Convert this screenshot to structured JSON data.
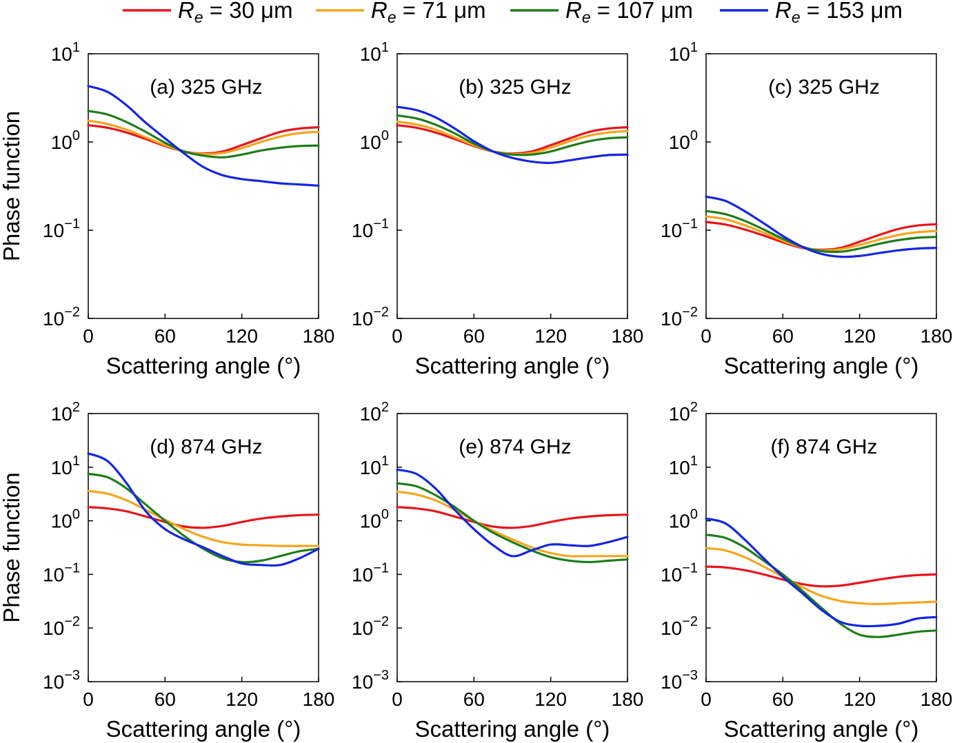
{
  "legend": {
    "entries": [
      {
        "label_var": "R",
        "label_sub": "e",
        "label_rest": " = 30 μm",
        "color": "#e8141c"
      },
      {
        "label_var": "R",
        "label_sub": "e",
        "label_rest": " = 71 μm",
        "color": "#f5a51d"
      },
      {
        "label_var": "R",
        "label_sub": "e",
        "label_rest": " = 107 μm",
        "color": "#1e7d1a"
      },
      {
        "label_var": "R",
        "label_sub": "e",
        "label_rest": " = 153 μm",
        "color": "#1426e0"
      }
    ]
  },
  "chart_data": [
    {
      "type": "line",
      "title": "(a) 325 GHz",
      "xlabel": "Scattering angle (°)",
      "ylabel": "Phase function",
      "xlim": [
        0,
        180
      ],
      "ylim": [
        0.01,
        10
      ],
      "yscale": "log",
      "xticks": [
        0,
        60,
        120,
        180
      ],
      "yticks_exp": [
        1,
        0,
        -1,
        -2
      ],
      "x": [
        0,
        15,
        30,
        45,
        60,
        75,
        90,
        105,
        120,
        135,
        150,
        165,
        180
      ],
      "series": [
        {
          "name": "Re = 30 μm",
          "values": [
            1.55,
            1.45,
            1.28,
            1.08,
            0.9,
            0.78,
            0.74,
            0.78,
            0.92,
            1.1,
            1.3,
            1.42,
            1.47
          ]
        },
        {
          "name": "Re = 71 μm",
          "values": [
            1.75,
            1.6,
            1.38,
            1.13,
            0.92,
            0.78,
            0.73,
            0.75,
            0.85,
            1.0,
            1.15,
            1.26,
            1.3
          ]
        },
        {
          "name": "Re = 107 μm",
          "values": [
            2.25,
            2.05,
            1.68,
            1.3,
            0.98,
            0.78,
            0.7,
            0.67,
            0.72,
            0.8,
            0.86,
            0.9,
            0.91
          ]
        },
        {
          "name": "Re = 153 μm",
          "values": [
            4.3,
            3.7,
            2.6,
            1.65,
            1.1,
            0.74,
            0.52,
            0.42,
            0.38,
            0.36,
            0.34,
            0.33,
            0.32
          ]
        }
      ]
    },
    {
      "type": "line",
      "title": "(b) 325 GHz",
      "xlabel": "Scattering angle (°)",
      "ylabel": "",
      "xlim": [
        0,
        180
      ],
      "ylim": [
        0.01,
        10
      ],
      "yscale": "log",
      "xticks": [
        0,
        60,
        120,
        180
      ],
      "yticks_exp": [
        1,
        0,
        -1,
        -2
      ],
      "x": [
        0,
        15,
        30,
        45,
        60,
        75,
        90,
        105,
        120,
        135,
        150,
        165,
        180
      ],
      "series": [
        {
          "name": "Re = 30 μm",
          "values": [
            1.55,
            1.45,
            1.28,
            1.08,
            0.9,
            0.78,
            0.74,
            0.78,
            0.92,
            1.1,
            1.3,
            1.42,
            1.47
          ]
        },
        {
          "name": "Re = 71 μm",
          "values": [
            1.7,
            1.58,
            1.38,
            1.13,
            0.92,
            0.78,
            0.73,
            0.75,
            0.86,
            1.02,
            1.18,
            1.28,
            1.33
          ]
        },
        {
          "name": "Re = 107 μm",
          "values": [
            2.0,
            1.85,
            1.57,
            1.25,
            0.96,
            0.78,
            0.72,
            0.72,
            0.78,
            0.9,
            1.02,
            1.1,
            1.13
          ]
        },
        {
          "name": "Re = 153 μm",
          "values": [
            2.5,
            2.3,
            1.9,
            1.42,
            1.02,
            0.78,
            0.66,
            0.6,
            0.58,
            0.62,
            0.67,
            0.71,
            0.72
          ]
        }
      ]
    },
    {
      "type": "line",
      "title": "(c) 325 GHz",
      "xlabel": "Scattering angle (°)",
      "ylabel": "",
      "xlim": [
        0,
        180
      ],
      "ylim": [
        0.01,
        10
      ],
      "yscale": "log",
      "xticks": [
        0,
        60,
        120,
        180
      ],
      "yticks_exp": [
        1,
        0,
        -1,
        -2
      ],
      "x": [
        0,
        15,
        30,
        45,
        60,
        75,
        90,
        105,
        120,
        135,
        150,
        165,
        180
      ],
      "series": [
        {
          "name": "Re = 30 μm",
          "values": [
            0.124,
            0.116,
            0.102,
            0.087,
            0.073,
            0.063,
            0.06,
            0.063,
            0.074,
            0.088,
            0.103,
            0.113,
            0.117
          ]
        },
        {
          "name": "Re = 71 μm",
          "values": [
            0.143,
            0.133,
            0.114,
            0.094,
            0.076,
            0.064,
            0.059,
            0.061,
            0.068,
            0.078,
            0.088,
            0.095,
            0.098
          ]
        },
        {
          "name": "Re = 107 μm",
          "values": [
            0.165,
            0.152,
            0.128,
            0.102,
            0.08,
            0.065,
            0.058,
            0.057,
            0.062,
            0.07,
            0.077,
            0.082,
            0.084
          ]
        },
        {
          "name": "Re = 153 μm",
          "values": [
            0.24,
            0.215,
            0.165,
            0.12,
            0.086,
            0.065,
            0.054,
            0.05,
            0.051,
            0.055,
            0.059,
            0.062,
            0.063
          ]
        }
      ]
    },
    {
      "type": "line",
      "title": "(d) 874 GHz",
      "xlabel": "Scattering angle (°)",
      "ylabel": "Phase function",
      "xlim": [
        0,
        180
      ],
      "ylim": [
        0.001,
        100
      ],
      "yscale": "log",
      "xticks": [
        0,
        60,
        120,
        180
      ],
      "yticks_exp": [
        2,
        1,
        0,
        -1,
        -2,
        -3
      ],
      "x": [
        0,
        15,
        30,
        45,
        60,
        75,
        90,
        105,
        120,
        135,
        150,
        165,
        180
      ],
      "series": [
        {
          "name": "Re = 30 μm",
          "values": [
            1.8,
            1.7,
            1.5,
            1.2,
            0.95,
            0.78,
            0.74,
            0.8,
            0.95,
            1.1,
            1.2,
            1.27,
            1.3
          ]
        },
        {
          "name": "Re = 71 μm",
          "values": [
            3.6,
            3.2,
            2.4,
            1.6,
            1.05,
            0.7,
            0.5,
            0.4,
            0.36,
            0.35,
            0.34,
            0.34,
            0.34
          ]
        },
        {
          "name": "Re = 107 μm",
          "values": [
            7.5,
            6.5,
            4.0,
            2.0,
            1.0,
            0.52,
            0.3,
            0.2,
            0.17,
            0.18,
            0.22,
            0.27,
            0.3
          ]
        },
        {
          "name": "Re = 153 μm",
          "values": [
            18.0,
            13.0,
            5.0,
            1.5,
            0.7,
            0.45,
            0.32,
            0.22,
            0.16,
            0.15,
            0.15,
            0.2,
            0.3
          ]
        }
      ]
    },
    {
      "type": "line",
      "title": "(e) 874 GHz",
      "xlabel": "Scattering angle (°)",
      "ylabel": "",
      "xlim": [
        0,
        180
      ],
      "ylim": [
        0.001,
        100
      ],
      "yscale": "log",
      "xticks": [
        0,
        60,
        120,
        180
      ],
      "yticks_exp": [
        2,
        1,
        0,
        -1,
        -2,
        -3
      ],
      "x": [
        0,
        15,
        30,
        45,
        60,
        75,
        90,
        105,
        120,
        135,
        150,
        165,
        180
      ],
      "series": [
        {
          "name": "Re = 30 μm",
          "values": [
            1.8,
            1.7,
            1.5,
            1.2,
            0.95,
            0.78,
            0.74,
            0.8,
            0.95,
            1.1,
            1.2,
            1.27,
            1.3
          ]
        },
        {
          "name": "Re = 71 μm",
          "values": [
            3.5,
            3.1,
            2.4,
            1.6,
            1.0,
            0.65,
            0.45,
            0.32,
            0.25,
            0.22,
            0.22,
            0.22,
            0.22
          ]
        },
        {
          "name": "Re = 107 μm",
          "values": [
            5.0,
            4.4,
            3.0,
            1.8,
            1.0,
            0.6,
            0.4,
            0.28,
            0.21,
            0.18,
            0.17,
            0.18,
            0.19
          ]
        },
        {
          "name": "Re = 153 μm",
          "values": [
            9.0,
            7.5,
            4.0,
            1.6,
            0.7,
            0.35,
            0.22,
            0.28,
            0.36,
            0.35,
            0.34,
            0.4,
            0.5
          ]
        }
      ]
    },
    {
      "type": "line",
      "title": "(f) 874 GHz",
      "xlabel": "Scattering angle (°)",
      "ylabel": "",
      "xlim": [
        0,
        180
      ],
      "ylim": [
        0.001,
        100
      ],
      "yscale": "log",
      "xticks": [
        0,
        60,
        120,
        180
      ],
      "yticks_exp": [
        2,
        1,
        0,
        -1,
        -2,
        -3
      ],
      "x": [
        0,
        15,
        30,
        45,
        60,
        75,
        90,
        105,
        120,
        135,
        150,
        165,
        180
      ],
      "series": [
        {
          "name": "Re = 30 μm",
          "values": [
            0.14,
            0.135,
            0.12,
            0.1,
            0.08,
            0.066,
            0.06,
            0.062,
            0.07,
            0.08,
            0.09,
            0.097,
            0.1
          ]
        },
        {
          "name": "Re = 71 μm",
          "values": [
            0.31,
            0.28,
            0.21,
            0.14,
            0.09,
            0.058,
            0.04,
            0.032,
            0.029,
            0.028,
            0.029,
            0.03,
            0.031
          ]
        },
        {
          "name": "Re = 107 μm",
          "values": [
            0.55,
            0.48,
            0.32,
            0.18,
            0.1,
            0.05,
            0.024,
            0.012,
            0.0075,
            0.0068,
            0.0075,
            0.0085,
            0.009
          ]
        },
        {
          "name": "Re = 153 μm",
          "values": [
            1.1,
            0.9,
            0.45,
            0.2,
            0.09,
            0.045,
            0.022,
            0.013,
            0.011,
            0.011,
            0.012,
            0.015,
            0.016
          ]
        }
      ]
    }
  ]
}
